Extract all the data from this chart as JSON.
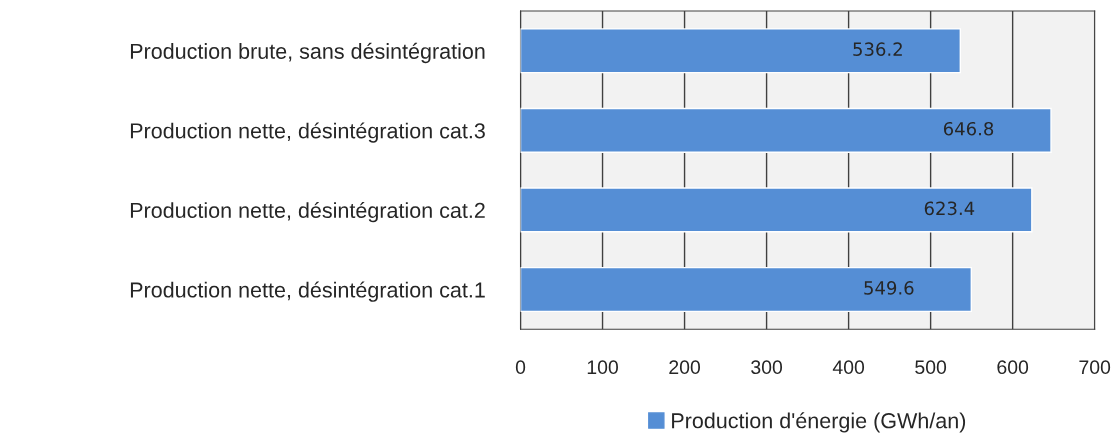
{
  "chart_data": {
    "type": "bar",
    "orientation": "horizontal",
    "categories": [
      "Production brute, sans désintégration",
      "Production nette, désintégration cat.3",
      "Production nette, désintégration cat.2",
      "Production nette, désintégration cat.1"
    ],
    "series": [
      {
        "name": "Production d'énergie (GWh/an)",
        "color": "#558ed5",
        "values": [
          536.2,
          646.8,
          623.4,
          549.6
        ]
      }
    ],
    "xlim": [
      0,
      700
    ],
    "xticks": [
      0,
      100,
      200,
      300,
      400,
      500,
      600,
      700
    ],
    "grid": "x",
    "legend": "bottom",
    "data_labels": true
  }
}
